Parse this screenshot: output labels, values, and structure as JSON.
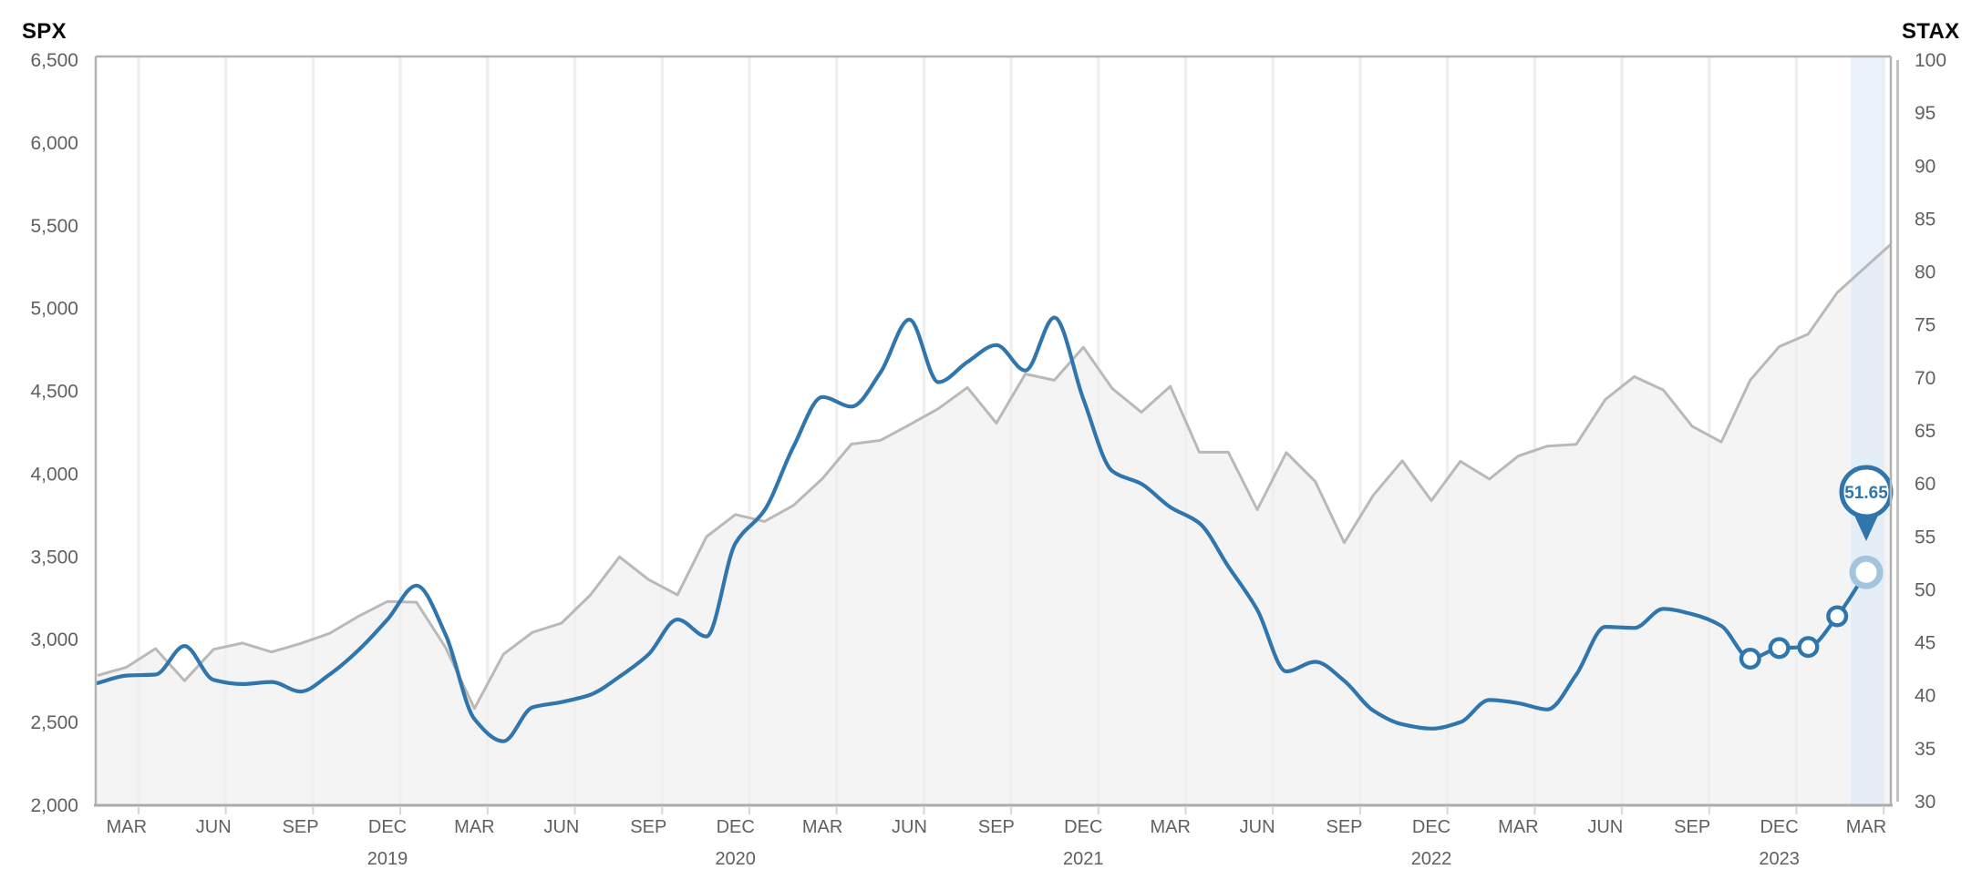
{
  "titles": {
    "left": "SPX",
    "right": "STAX"
  },
  "colors": {
    "stax_line": "#3076ad",
    "stax_marker_ring": "#a3c4dd",
    "spx_line": "#b9b9b9",
    "spx_area": "#f4f4f4",
    "grid_line": "#efefef",
    "border": "#b2b2b2",
    "right_spine": "#c2c2c2",
    "axis_text": "#606060",
    "band": "#d9eaf7",
    "callout_text": "#2f76ac",
    "marker_fill": "#ffffff"
  },
  "chart_data": {
    "type": "line",
    "title": "",
    "grid": "vertical-only",
    "legend_position": "none",
    "x_frequency": "monthly",
    "x_range": [
      "2019-02",
      "2024-03"
    ],
    "left_axis": {
      "label": "SPX",
      "min": 2000,
      "max": 6500,
      "step": 500,
      "ticks": [
        "6,500",
        "6,000",
        "5,500",
        "5,000",
        "4,500",
        "4,000",
        "3,500",
        "3,000",
        "2,500",
        "2,000"
      ]
    },
    "right_axis": {
      "label": "STAX",
      "min": 30,
      "max": 100,
      "step": 5,
      "ticks": [
        "100",
        "95",
        "90",
        "85",
        "80",
        "75",
        "70",
        "65",
        "60",
        "55",
        "50",
        "45",
        "40",
        "35",
        "30"
      ]
    },
    "x_tick_labels": [
      {
        "text": "MAR",
        "i": 1
      },
      {
        "text": "JUN",
        "i": 4
      },
      {
        "text": "SEP",
        "i": 7
      },
      {
        "text": "DEC",
        "i": 10,
        "year": "2019"
      },
      {
        "text": "MAR",
        "i": 13
      },
      {
        "text": "JUN",
        "i": 16
      },
      {
        "text": "SEP",
        "i": 19
      },
      {
        "text": "DEC",
        "i": 22,
        "year": "2020"
      },
      {
        "text": "MAR",
        "i": 25
      },
      {
        "text": "JUN",
        "i": 28
      },
      {
        "text": "SEP",
        "i": 31
      },
      {
        "text": "DEC",
        "i": 34,
        "year": "2021"
      },
      {
        "text": "MAR",
        "i": 37
      },
      {
        "text": "JUN",
        "i": 40
      },
      {
        "text": "SEP",
        "i": 43
      },
      {
        "text": "DEC",
        "i": 46,
        "year": "2022"
      },
      {
        "text": "MAR",
        "i": 49
      },
      {
        "text": "JUN",
        "i": 52
      },
      {
        "text": "SEP",
        "i": 55
      },
      {
        "text": "DEC",
        "i": 58,
        "year": "2023"
      },
      {
        "text": "MAR",
        "i": 61
      }
    ],
    "series": [
      {
        "name": "SPX",
        "axis": "left",
        "style": "straight",
        "area": true,
        "values": [
          2784,
          2834,
          2946,
          2752,
          2942,
          2980,
          2926,
          2977,
          3038,
          3141,
          3231,
          3226,
          2954,
          2585,
          2912,
          3044,
          3100,
          3271,
          3500,
          3363,
          3270,
          3622,
          3756,
          3714,
          3811,
          3973,
          4181,
          4204,
          4298,
          4395,
          4523,
          4308,
          4605,
          4567,
          4766,
          4516,
          4374,
          4530,
          4132,
          4132,
          3785,
          4130,
          3955,
          3586,
          3872,
          4080,
          3840,
          4077,
          3970,
          4109,
          4169,
          4180,
          4450,
          4589,
          4508,
          4288,
          4194,
          4568,
          4770,
          4846,
          5096,
          5254
        ]
      },
      {
        "name": "STAX",
        "axis": "right",
        "style": "smooth",
        "area": false,
        "values": [
          41.2,
          41.9,
          42.0,
          44.7,
          41.5,
          41.1,
          41.3,
          40.4,
          42.0,
          44.3,
          47.2,
          50.4,
          45.8,
          37.8,
          35.7,
          38.9,
          39.4,
          40.1,
          41.8,
          43.9,
          47.2,
          45.6,
          54.4,
          57.5,
          63.5,
          68.2,
          67.3,
          70.5,
          75.5,
          69.6,
          71.5,
          73.1,
          70.7,
          75.7,
          68.0,
          61.2,
          60.0,
          57.8,
          56.3,
          52.2,
          48.1,
          42.3,
          43.2,
          41.4,
          38.6,
          37.3,
          36.9,
          37.5,
          39.6,
          39.3,
          38.7,
          42.0,
          46.5,
          46.4,
          48.2,
          47.7,
          46.6,
          43.5,
          44.5,
          44.6,
          47.5,
          51.65
        ]
      }
    ],
    "markers": {
      "series": "STAX",
      "from_index": 57,
      "big_last": true
    },
    "callout": {
      "text": "51.65",
      "series": "STAX",
      "index": 61
    },
    "recent_highlight_band": true
  }
}
